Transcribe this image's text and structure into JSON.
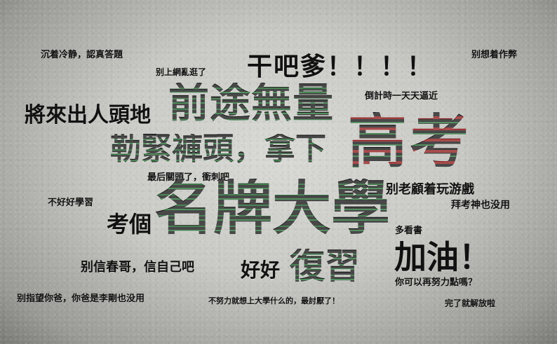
{
  "cloud": {
    "w1": "沉着冷静，認真答題",
    "w2": "别上網亂逛了",
    "w3": "干吧爹！！！！",
    "w4": "别想着作弊",
    "w5": "前途無量",
    "w6": "倒計時一天天逼近",
    "w7": "將來出人頭地",
    "w8": "高考",
    "w9": "勒緊褲頭，拿下",
    "w10": "最后關頭了，衝刺吧",
    "w11": "别老顧着玩游戲",
    "w12": "不好好學習",
    "w13": "考個",
    "w14": "名牌大學",
    "w15": "拜考神也没用",
    "w16": "多看書",
    "w17": "加油！",
    "w18": "别信春哥，信自己吧",
    "w19": "好好",
    "w20": "復習",
    "w21": "你可以再努力點嗎？",
    "w22": "别指望你爸，你爸是李剛也没用",
    "w23": "不努力就想上大學什么的，最討厭了！",
    "w24": "完了就解放啦"
  }
}
